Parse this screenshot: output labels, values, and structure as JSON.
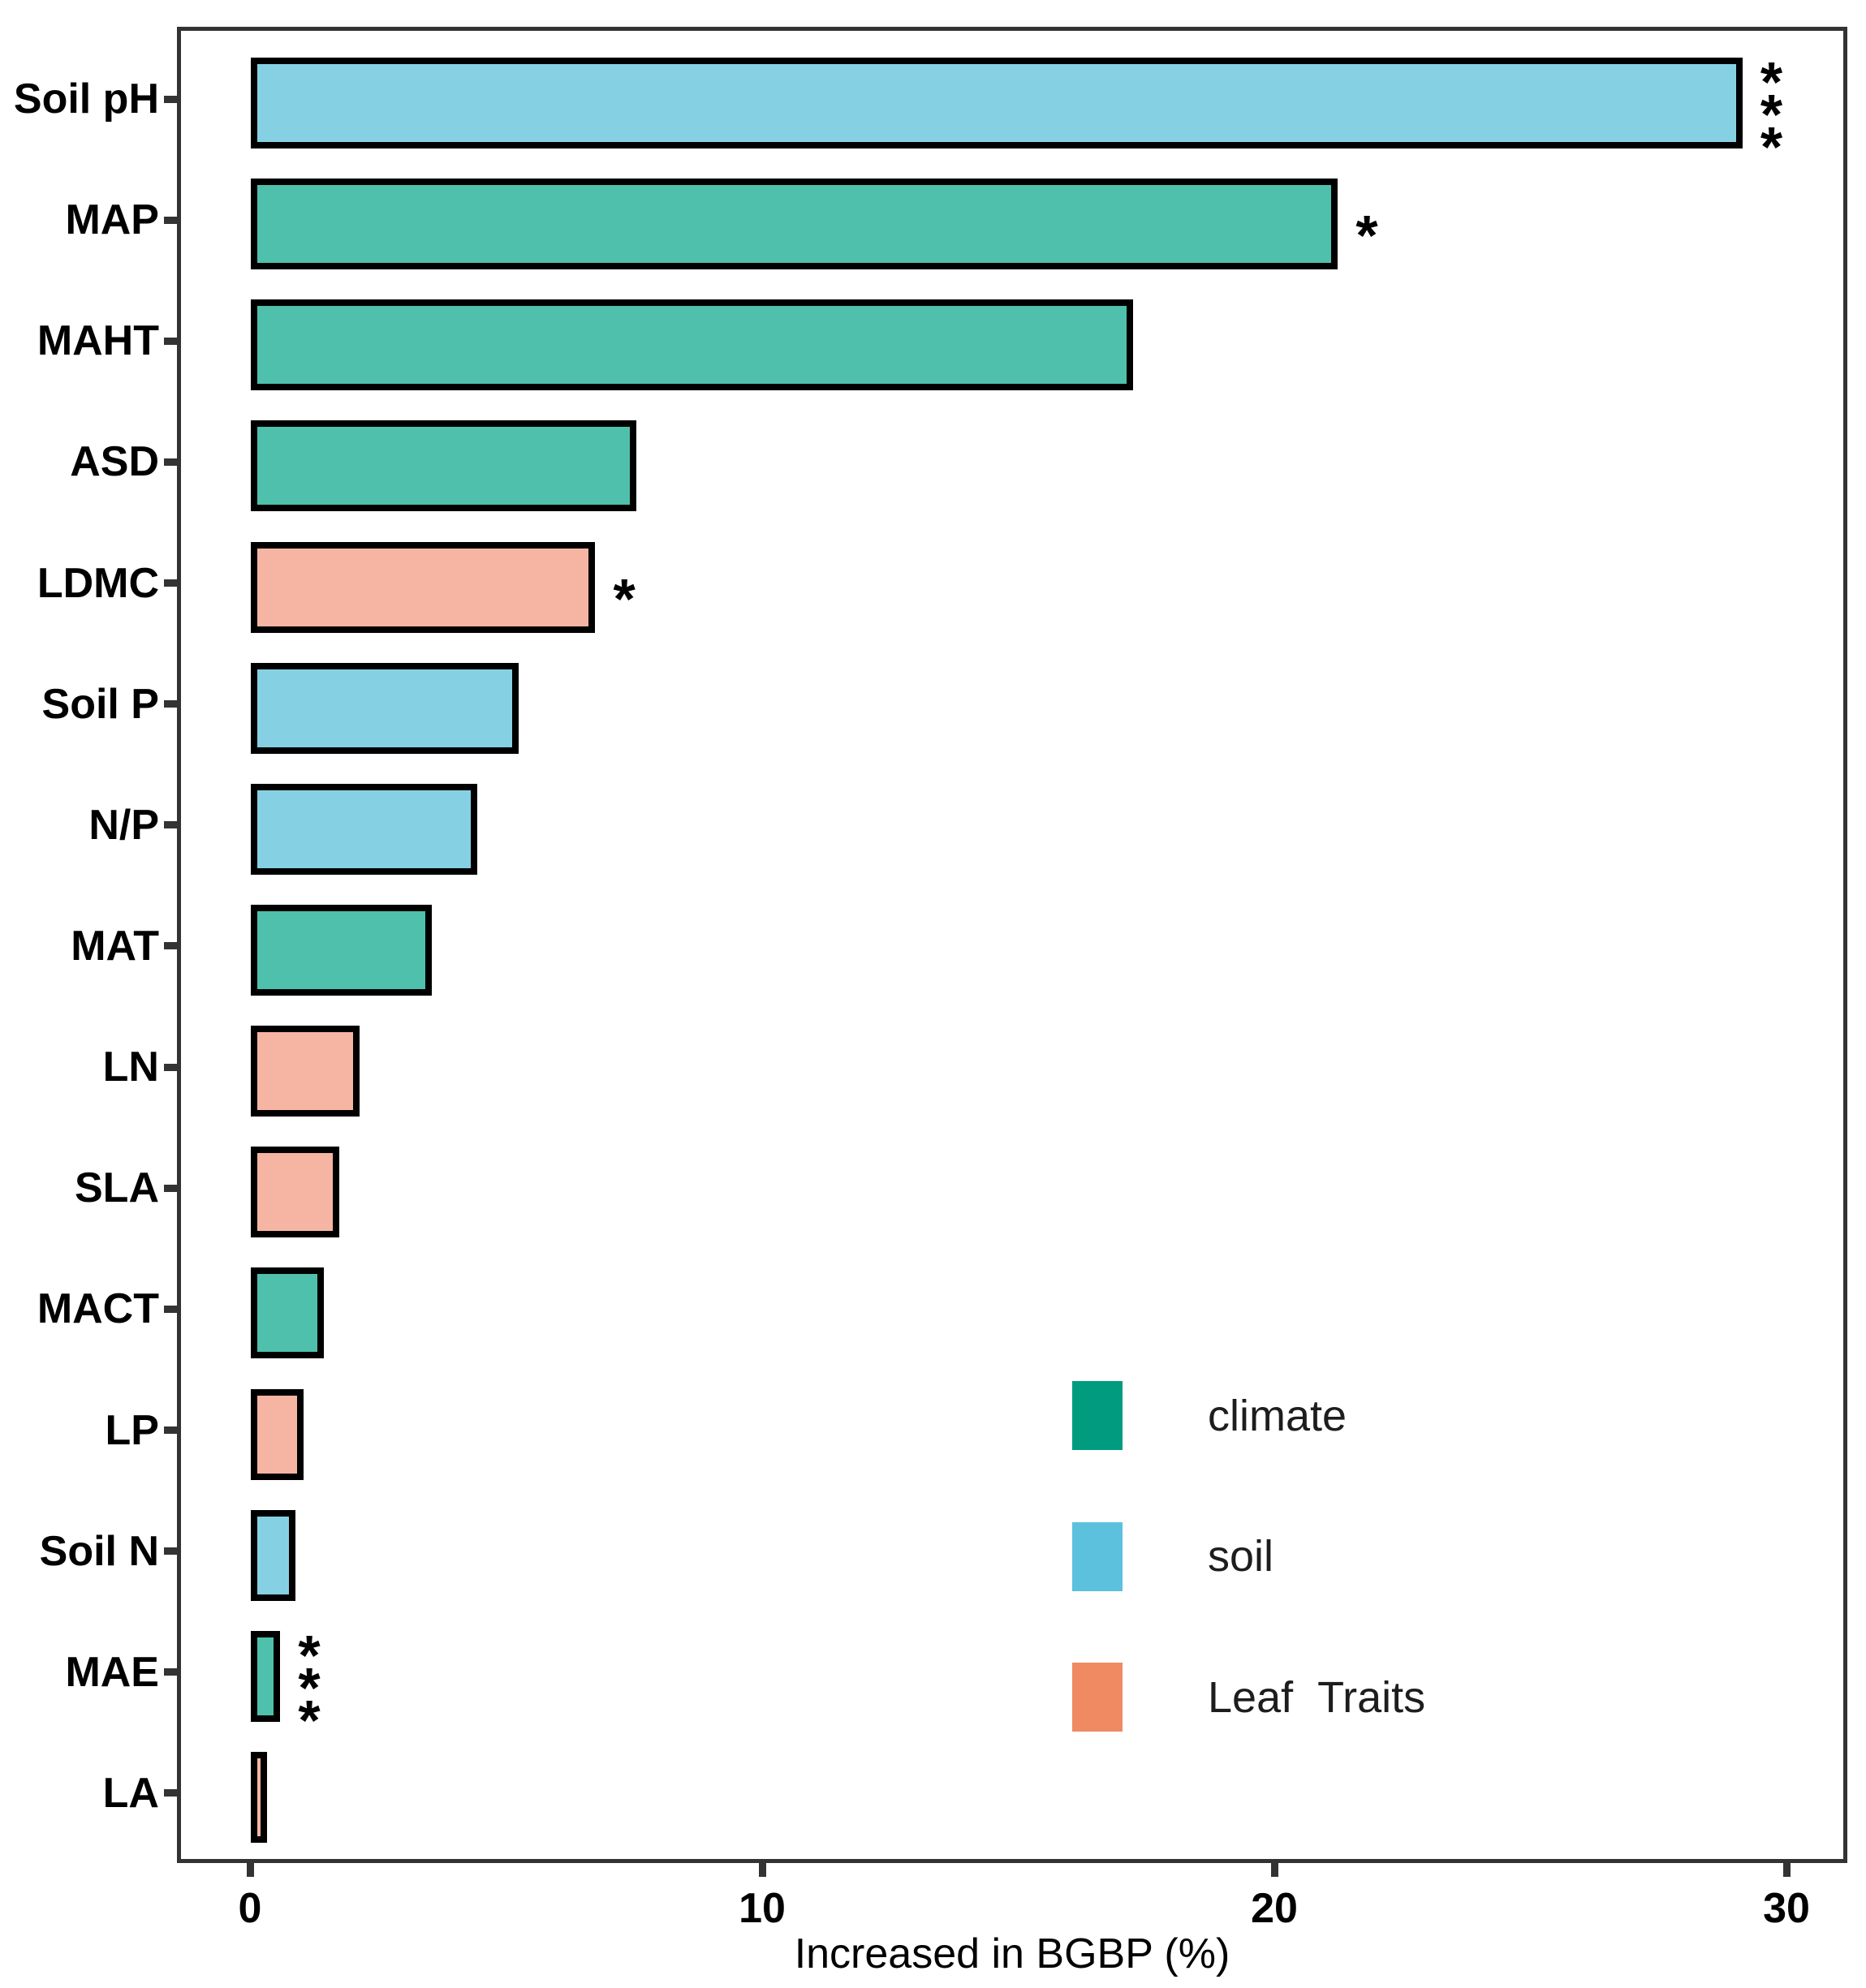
{
  "chart_data": {
    "type": "bar",
    "orientation": "horizontal",
    "title": "",
    "xlabel": "Increased in BGBP (%)",
    "ylabel": "",
    "xlim": [
      0,
      30
    ],
    "x_ticks": [
      0,
      10,
      20,
      30
    ],
    "x_tick_labels": [
      "0",
      "10",
      "20",
      "30"
    ],
    "grid": false,
    "legend_position": "inside lower right",
    "categories": [
      "Soil pH",
      "MAP",
      "MAHT",
      "ASD",
      "LDMC",
      "Soil P",
      "N/P",
      "MAT",
      "LN",
      "SLA",
      "MACT",
      "LP",
      "Soil N",
      "MAE",
      "LA"
    ],
    "values": [
      29.0,
      21.1,
      17.1,
      7.4,
      6.6,
      5.1,
      4.3,
      3.4,
      2.0,
      1.6,
      1.3,
      0.9,
      0.75,
      0.45,
      0.15
    ],
    "groups": [
      "soil",
      "climate",
      "climate",
      "climate",
      "leaf",
      "soil",
      "soil",
      "climate",
      "leaf",
      "leaf",
      "climate",
      "leaf",
      "soil",
      "climate",
      "leaf"
    ],
    "significance": [
      "***",
      "*",
      "",
      "",
      "*",
      "",
      "",
      "",
      "",
      "",
      "",
      "",
      "",
      "***",
      ""
    ]
  },
  "legend": {
    "items": [
      {
        "label": "climate",
        "group": "climate"
      },
      {
        "label": "soil",
        "group": "soil"
      },
      {
        "label": "Leaf Traits",
        "group": "leaf"
      }
    ]
  },
  "colors": {
    "bar_fill": {
      "climate": "#4ec0ac",
      "soil": "#85d1e3",
      "leaf": "#f6b5a2"
    },
    "bar_border": "#000000",
    "legend_swatch": {
      "climate": "#019c80",
      "soil": "#5cc1dd",
      "leaf": "#f08a63"
    },
    "panel_border": "#333333",
    "text": "#000000"
  }
}
